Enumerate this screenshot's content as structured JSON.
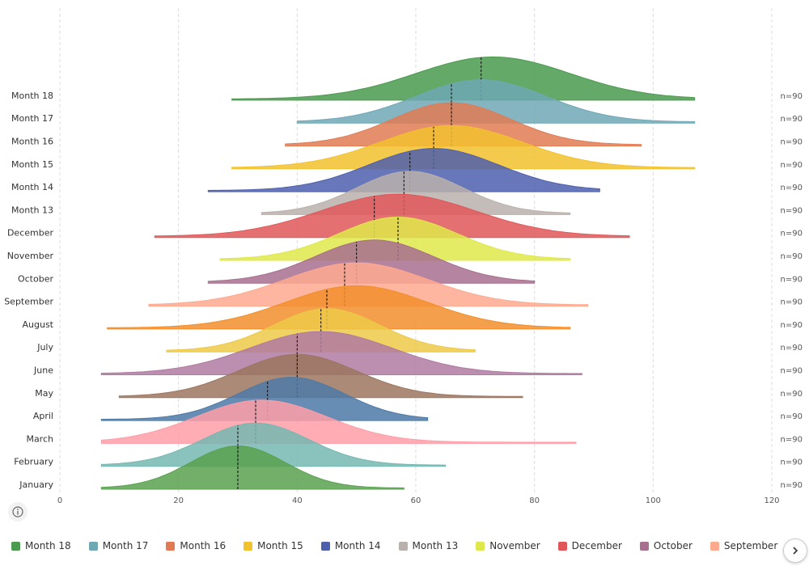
{
  "chart_data": {
    "type": "ridgeline",
    "xlim": [
      0,
      120
    ],
    "x_ticks": [
      "0",
      "20",
      "40",
      "60",
      "80",
      "100",
      "120"
    ],
    "grid": "vertical dashed",
    "legend_position": "bottom",
    "series": [
      {
        "name": "January",
        "color": "#59a14f",
        "count_label": "n=90",
        "min": 7,
        "max": 58,
        "mean": 30,
        "median": 30,
        "sd": 8
      },
      {
        "name": "February",
        "color": "#76b7b2",
        "count_label": "n=90",
        "min": 7,
        "max": 65,
        "mean": 33,
        "median": 30,
        "sd": 9
      },
      {
        "name": "March",
        "color": "#ff9da7",
        "count_label": "n=90",
        "min": 7,
        "max": 87,
        "mean": 34,
        "median": 33,
        "sd": 11
      },
      {
        "name": "April",
        "color": "#4e79a7",
        "count_label": "n=90",
        "min": 7,
        "max": 62,
        "mean": 39,
        "median": 35,
        "sd": 9
      },
      {
        "name": "May",
        "color": "#9c755f",
        "count_label": "n=90",
        "min": 10,
        "max": 78,
        "mean": 40,
        "median": 40,
        "sd": 10
      },
      {
        "name": "June",
        "color": "#b07aa1",
        "count_label": "n=90",
        "min": 7,
        "max": 88,
        "mean": 44,
        "median": 40,
        "sd": 12
      },
      {
        "name": "July",
        "color": "#edc948",
        "count_label": "n=90",
        "min": 18,
        "max": 70,
        "mean": 45,
        "median": 44,
        "sd": 9
      },
      {
        "name": "August",
        "color": "#f28e2b",
        "count_label": "n=90",
        "min": 8,
        "max": 86,
        "mean": 50,
        "median": 45,
        "sd": 12
      },
      {
        "name": "September",
        "color": "#ffa98f",
        "count_label": "n=90",
        "min": 15,
        "max": 89,
        "mean": 50,
        "median": 48,
        "sd": 12
      },
      {
        "name": "October",
        "color": "#a86f8f",
        "count_label": "n=90",
        "min": 25,
        "max": 80,
        "mean": 53,
        "median": 50,
        "sd": 10
      },
      {
        "name": "November",
        "color": "#dfe84a",
        "count_label": "n=90",
        "min": 27,
        "max": 86,
        "mean": 57,
        "median": 57,
        "sd": 10
      },
      {
        "name": "December",
        "color": "#e15759",
        "count_label": "n=90",
        "min": 16,
        "max": 96,
        "mean": 57,
        "median": 53,
        "sd": 13
      },
      {
        "name": "Month 13",
        "color": "#bab0ac",
        "count_label": "n=90",
        "min": 34,
        "max": 86,
        "mean": 59,
        "median": 58,
        "sd": 9
      },
      {
        "name": "Month 14",
        "color": "#4e5fad",
        "count_label": "n=90",
        "min": 25,
        "max": 91,
        "mean": 63,
        "median": 59,
        "sd": 11
      },
      {
        "name": "Month 15",
        "color": "#f2c12e",
        "count_label": "n=90",
        "min": 29,
        "max": 107,
        "mean": 66,
        "median": 63,
        "sd": 12
      },
      {
        "name": "Month 16",
        "color": "#e07b54",
        "count_label": "n=90",
        "min": 38,
        "max": 98,
        "mean": 66,
        "median": 66,
        "sd": 10
      },
      {
        "name": "Month 17",
        "color": "#6fa8b5",
        "count_label": "n=90",
        "min": 40,
        "max": 107,
        "mean": 71,
        "median": 66,
        "sd": 11
      },
      {
        "name": "Month 18",
        "color": "#4a9a4f",
        "count_label": "n=90",
        "min": 29,
        "max": 107,
        "mean": 73,
        "median": 71,
        "sd": 13
      }
    ]
  },
  "legend": {
    "items": [
      {
        "label": "Month 18",
        "color": "#4a9a4f"
      },
      {
        "label": "Month 17",
        "color": "#6fa8b5"
      },
      {
        "label": "Month 16",
        "color": "#e07b54"
      },
      {
        "label": "Month 15",
        "color": "#f2c12e"
      },
      {
        "label": "Month 14",
        "color": "#4e5fad"
      },
      {
        "label": "Month 13",
        "color": "#bab0ac"
      },
      {
        "label": "November",
        "color": "#dfe84a"
      },
      {
        "label": "December",
        "color": "#e15759"
      },
      {
        "label": "October",
        "color": "#a86f8f"
      },
      {
        "label": "September",
        "color": "#ffa98f"
      },
      {
        "label": "August",
        "color": "#f28e2b"
      }
    ],
    "next_icon": "chevron-right-icon"
  },
  "controls": {
    "info_icon": "info-icon"
  }
}
